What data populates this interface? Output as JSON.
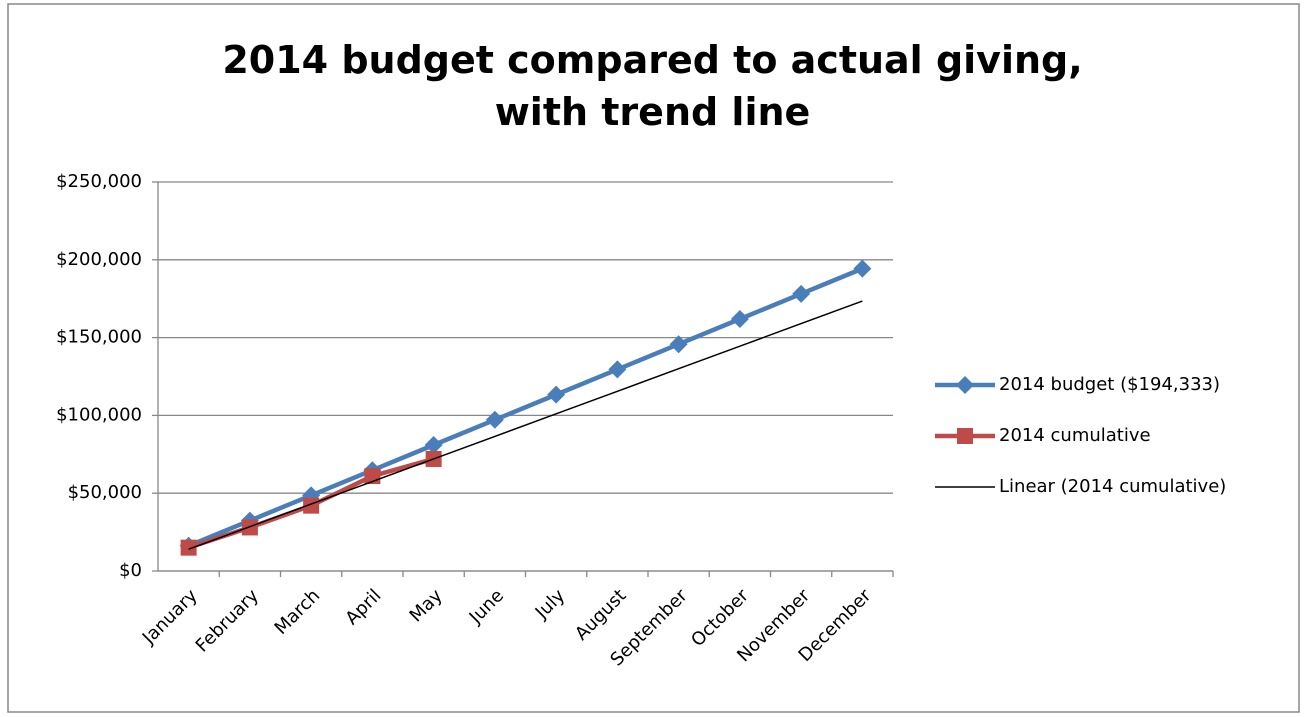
{
  "chart_data": {
    "type": "line",
    "title": "2014 budget compared to actual giving, with trend line",
    "categories": [
      "January",
      "February",
      "March",
      "April",
      "May",
      "June",
      "July",
      "August",
      "September",
      "October",
      "November",
      "December"
    ],
    "series": [
      {
        "name": "2014 budget ($194,333)",
        "color": "#4a7ebb",
        "marker": "diamond",
        "values": [
          16194,
          32389,
          48583,
          64778,
          80972,
          97167,
          113361,
          129555,
          145750,
          161944,
          178139,
          194333
        ]
      },
      {
        "name": "2014 cumulative",
        "color": "#be4b48",
        "marker": "square",
        "values": [
          15000,
          28000,
          42000,
          61000,
          72000,
          null,
          null,
          null,
          null,
          null,
          null,
          null
        ]
      },
      {
        "name": "Linear (2014 cumulative)",
        "color": "#000000",
        "marker": "none",
        "values": [
          14000,
          28500,
          43000,
          57500,
          72000,
          86500,
          101000,
          115500,
          130000,
          144500,
          159000,
          173500
        ]
      }
    ],
    "ylim": [
      0,
      250000
    ],
    "yticks": [
      {
        "value": 0,
        "label": "$0"
      },
      {
        "value": 50000,
        "label": "$50,000"
      },
      {
        "value": 100000,
        "label": "$100,000"
      },
      {
        "value": 150000,
        "label": "$150,000"
      },
      {
        "value": 200000,
        "label": "$200,000"
      },
      {
        "value": 250000,
        "label": "$250,000"
      }
    ],
    "grid": true,
    "legend": "right"
  }
}
